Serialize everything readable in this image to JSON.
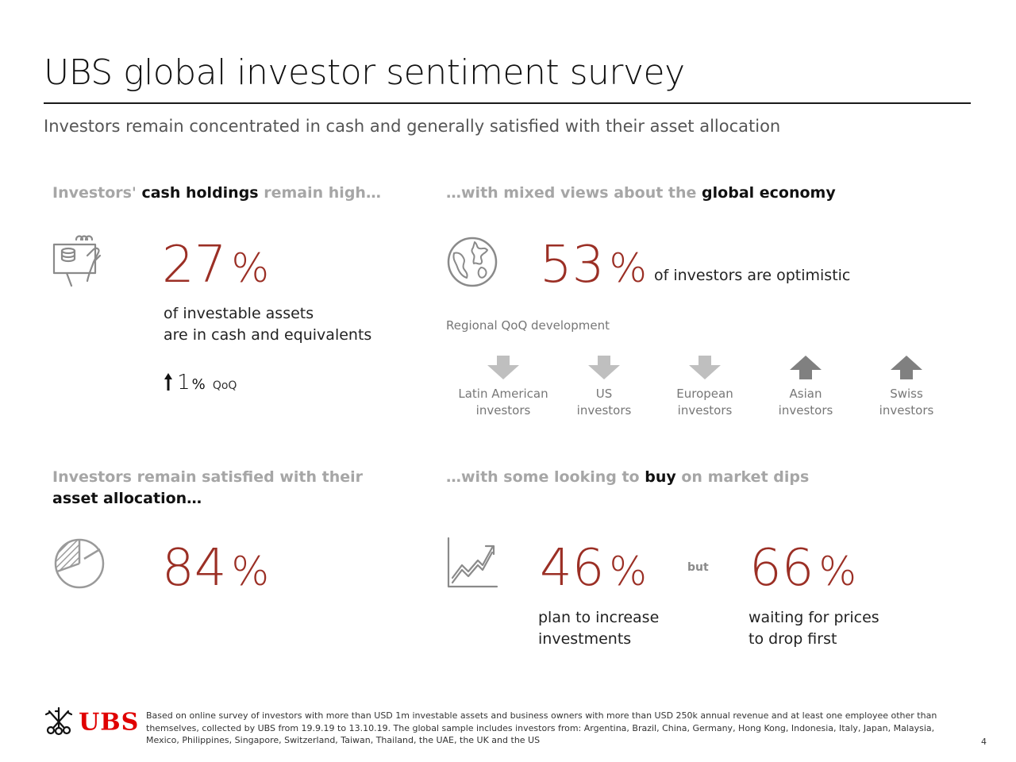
{
  "title": "UBS global investor sentiment survey",
  "subtitle": "Investors remain concentrated in cash and generally satisfied with their asset allocation",
  "colors": {
    "accent": "#9b2f25",
    "muted": "#a6a6a6",
    "brand": "#e00000",
    "arrow_down": "#bfbfbf",
    "arrow_up": "#808080"
  },
  "cash": {
    "heading_pre": "Investors'",
    "heading_em": "cash holdings",
    "heading_post": "remain high…",
    "value": "27",
    "pct": "%",
    "desc_line1": "of investable assets",
    "desc_line2": "are in cash and equivalents",
    "change_value": "1",
    "change_pct": "%",
    "change_label": "QoQ",
    "icon": "cash-hand-icon"
  },
  "economy": {
    "heading_pre": "…with mixed views about the",
    "heading_em": "global economy",
    "value": "53",
    "pct": "%",
    "desc": "of investors are optimistic",
    "regional_label": "Regional QoQ development",
    "icon": "globe-icon",
    "regions": [
      {
        "line1": "Latin American",
        "line2": "investors",
        "direction": "down"
      },
      {
        "line1": "US",
        "line2": "investors",
        "direction": "down"
      },
      {
        "line1": "European",
        "line2": "investors",
        "direction": "down"
      },
      {
        "line1": "Asian",
        "line2": "investors",
        "direction": "up"
      },
      {
        "line1": "Swiss",
        "line2": "investors",
        "direction": "up"
      }
    ]
  },
  "allocation": {
    "heading_line1": "Investors remain satisfied with their",
    "heading_line2": "asset allocation…",
    "value": "84",
    "pct": "%",
    "icon": "pie-chart-icon"
  },
  "buy": {
    "heading_pre": "…with some looking to",
    "heading_em": "buy",
    "heading_post": "on market dips",
    "value1": "46",
    "pct1": "%",
    "desc1_line1": "plan to increase",
    "desc1_line2": "investments",
    "connector": "but",
    "value2": "66",
    "pct2": "%",
    "desc2_line1": "waiting for prices",
    "desc2_line2": "to drop first",
    "icon": "trend-up-icon"
  },
  "footer": {
    "logo": "UBS",
    "line1": "Based on online survey of investors with more than USD 1m investable assets and business owners with more than USD 250k annual revenue and at least one employee other than",
    "line2": "themselves, collected by UBS from 19.9.19 to 13.10.19. The global sample includes investors from: Argentina, Brazil, China, Germany, Hong Kong, Indonesia, Italy, Japan, Malaysia,",
    "line3": "Mexico, Philippines, Singapore, Switzerland, Taiwan, Thailand, the UAE, the UK and the US",
    "page": "4"
  }
}
